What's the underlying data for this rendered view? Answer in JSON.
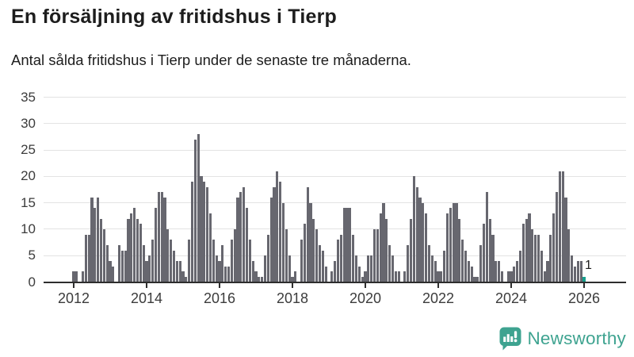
{
  "header": {
    "title": "En försäljning av fritidshus i Tierp",
    "subtitle": "Antal sålda fritidshus i Tierp under de senaste tre månaderna."
  },
  "chart_data": {
    "type": "bar",
    "title": "En försäljning av fritidshus i Tierp",
    "subtitle": "Antal sålda fritidshus i Tierp under de senaste tre månaderna.",
    "xlabel": "",
    "ylabel": "",
    "unit": "antal sålda fritidshus (rullande tre månader)",
    "frequency": "monthly",
    "x_start": "2012-01",
    "x_end": "2026-01",
    "ylim": [
      0,
      35
    ],
    "yticks": [
      0,
      5,
      10,
      15,
      20,
      25,
      30,
      35
    ],
    "xticks": [
      2012,
      2014,
      2016,
      2018,
      2020,
      2022,
      2024,
      2026
    ],
    "grid": "horizontal",
    "legend": "none",
    "bar_color": "#67676f",
    "highlight_color": "#17a08e",
    "highlight_index": 168,
    "annotation": {
      "text": "1",
      "target": "last-bar"
    },
    "last_value": 1,
    "values": [
      2,
      2,
      0,
      2,
      9,
      9,
      16,
      14,
      16,
      12,
      10,
      7,
      4,
      3,
      0,
      7,
      6,
      6,
      12,
      13,
      14,
      12,
      11,
      7,
      4,
      5,
      8,
      14,
      17,
      17,
      16,
      10,
      8,
      6,
      4,
      4,
      2,
      1,
      8,
      19,
      27,
      28,
      20,
      19,
      18,
      13,
      8,
      5,
      4,
      7,
      3,
      3,
      8,
      10,
      16,
      17,
      18,
      14,
      8,
      4,
      2,
      1,
      1,
      5,
      9,
      16,
      18,
      21,
      19,
      15,
      10,
      5,
      1,
      2,
      0,
      8,
      11,
      18,
      15,
      12,
      10,
      7,
      6,
      3,
      0,
      2,
      4,
      8,
      9,
      14,
      14,
      14,
      9,
      5,
      3,
      1,
      2,
      5,
      5,
      10,
      10,
      13,
      15,
      12,
      7,
      5,
      2,
      2,
      0,
      2,
      7,
      12,
      20,
      18,
      16,
      15,
      13,
      7,
      5,
      4,
      2,
      2,
      6,
      13,
      14,
      15,
      15,
      12,
      8,
      6,
      4,
      3,
      1,
      1,
      7,
      11,
      17,
      12,
      9,
      4,
      4,
      2,
      0,
      2,
      2,
      3,
      4,
      6,
      11,
      12,
      13,
      10,
      9,
      9,
      6,
      2,
      4,
      9,
      13,
      17,
      21,
      21,
      16,
      10,
      5,
      3,
      4,
      4,
      1
    ]
  },
  "footer": {
    "brand": "Newsworthy",
    "logo_icon": "bar-chart-speech-bubble-icon",
    "brand_color": "#3ea390"
  }
}
